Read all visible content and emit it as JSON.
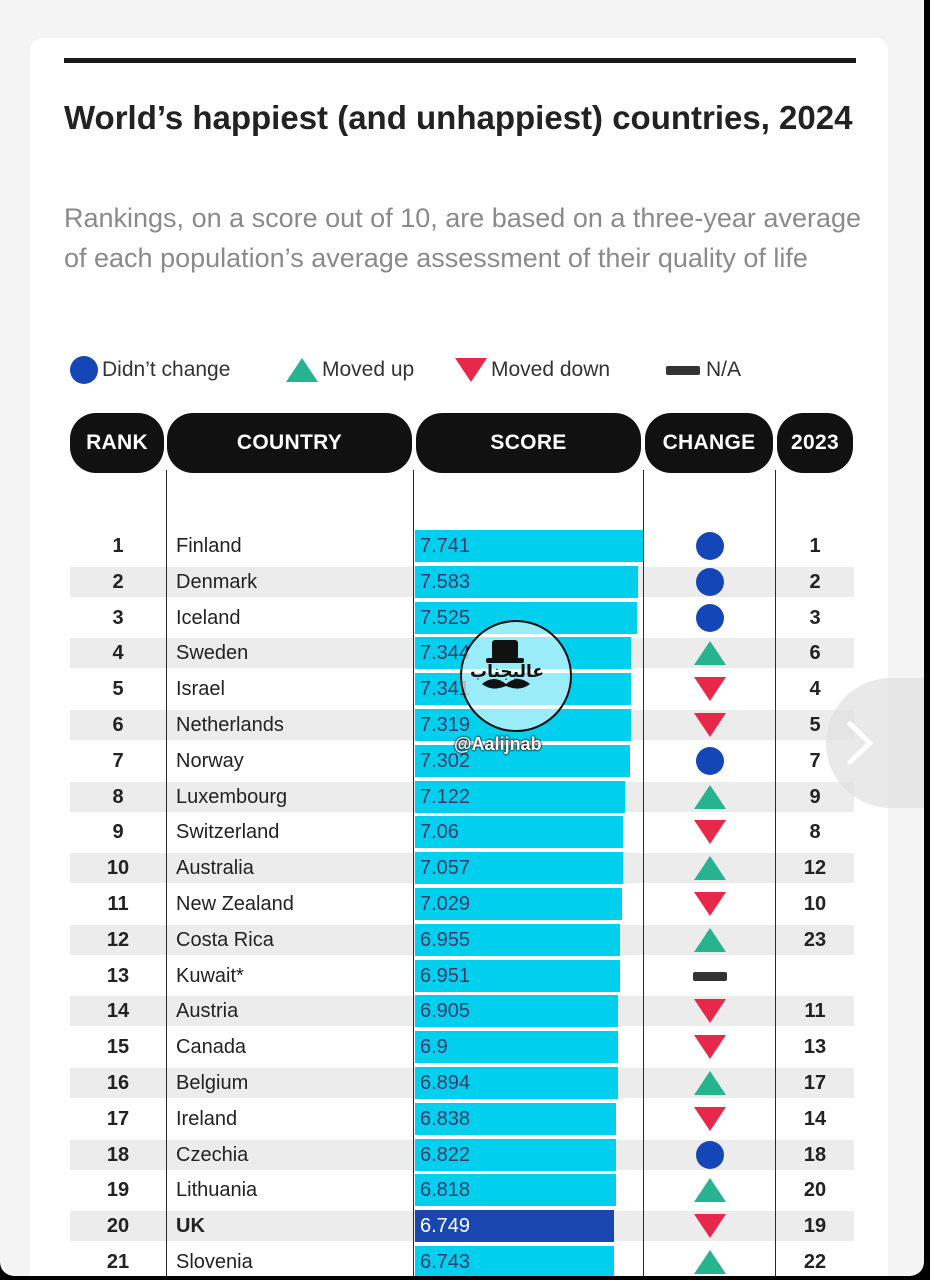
{
  "title": "World’s happiest (and unhappiest) countries, 2024",
  "subtitle": "Rankings, on a score out of 10, are based on a three-year average of each population’s average assessment of their quality of life",
  "legend": {
    "no_change": "Didn’t change",
    "up": "Moved up",
    "down": "Moved down",
    "na": "N/A"
  },
  "headers": {
    "rank": "RANK",
    "country": "COUNTRY",
    "score": "SCORE",
    "change": "CHANGE",
    "prev": "2023"
  },
  "watermark": {
    "arabic": "عالیجناب",
    "handle": "@Aalijnab"
  },
  "colors": {
    "bar": "#00d0ee",
    "highlight_bar": "#1a46b0",
    "no_change": "#1546b8",
    "up": "#26b38f",
    "down": "#e8284b",
    "na": "#333333"
  },
  "chart_data": {
    "type": "bar",
    "orientation": "horizontal",
    "title": "World’s happiest (and unhappiest) countries, 2024",
    "xlim": [
      0,
      10
    ],
    "highlight": "UK",
    "rows": [
      {
        "rank": "1",
        "country": "Finland",
        "score": "7.741",
        "change": "same",
        "rank_2023": "1"
      },
      {
        "rank": "2",
        "country": "Denmark",
        "score": "7.583",
        "change": "same",
        "rank_2023": "2"
      },
      {
        "rank": "3",
        "country": "Iceland",
        "score": "7.525",
        "change": "same",
        "rank_2023": "3"
      },
      {
        "rank": "4",
        "country": "Sweden",
        "score": "7.344",
        "change": "up",
        "rank_2023": "6"
      },
      {
        "rank": "5",
        "country": "Israel",
        "score": "7.341",
        "change": "down",
        "rank_2023": "4"
      },
      {
        "rank": "6",
        "country": "Netherlands",
        "score": "7.319",
        "change": "down",
        "rank_2023": "5"
      },
      {
        "rank": "7",
        "country": "Norway",
        "score": "7.302",
        "change": "same",
        "rank_2023": "7"
      },
      {
        "rank": "8",
        "country": "Luxembourg",
        "score": "7.122",
        "change": "up",
        "rank_2023": "9"
      },
      {
        "rank": "9",
        "country": "Switzerland",
        "score": "7.06",
        "change": "down",
        "rank_2023": "8"
      },
      {
        "rank": "10",
        "country": "Australia",
        "score": "7.057",
        "change": "up",
        "rank_2023": "12"
      },
      {
        "rank": "11",
        "country": "New Zealand",
        "score": "7.029",
        "change": "down",
        "rank_2023": "10"
      },
      {
        "rank": "12",
        "country": "Costa Rica",
        "score": "6.955",
        "change": "up",
        "rank_2023": "23"
      },
      {
        "rank": "13",
        "country": "Kuwait*",
        "score": "6.951",
        "change": "na",
        "rank_2023": ""
      },
      {
        "rank": "14",
        "country": "Austria",
        "score": "6.905",
        "change": "down",
        "rank_2023": "11"
      },
      {
        "rank": "15",
        "country": "Canada",
        "score": "6.9",
        "change": "down",
        "rank_2023": "13"
      },
      {
        "rank": "16",
        "country": "Belgium",
        "score": "6.894",
        "change": "up",
        "rank_2023": "17"
      },
      {
        "rank": "17",
        "country": "Ireland",
        "score": "6.838",
        "change": "down",
        "rank_2023": "14"
      },
      {
        "rank": "18",
        "country": "Czechia",
        "score": "6.822",
        "change": "same",
        "rank_2023": "18"
      },
      {
        "rank": "19",
        "country": "Lithuania",
        "score": "6.818",
        "change": "up",
        "rank_2023": "20"
      },
      {
        "rank": "20",
        "country": "UK",
        "score": "6.749",
        "change": "down",
        "rank_2023": "19"
      },
      {
        "rank": "21",
        "country": "Slovenia",
        "score": "6.743",
        "change": "up",
        "rank_2023": "22"
      }
    ]
  }
}
